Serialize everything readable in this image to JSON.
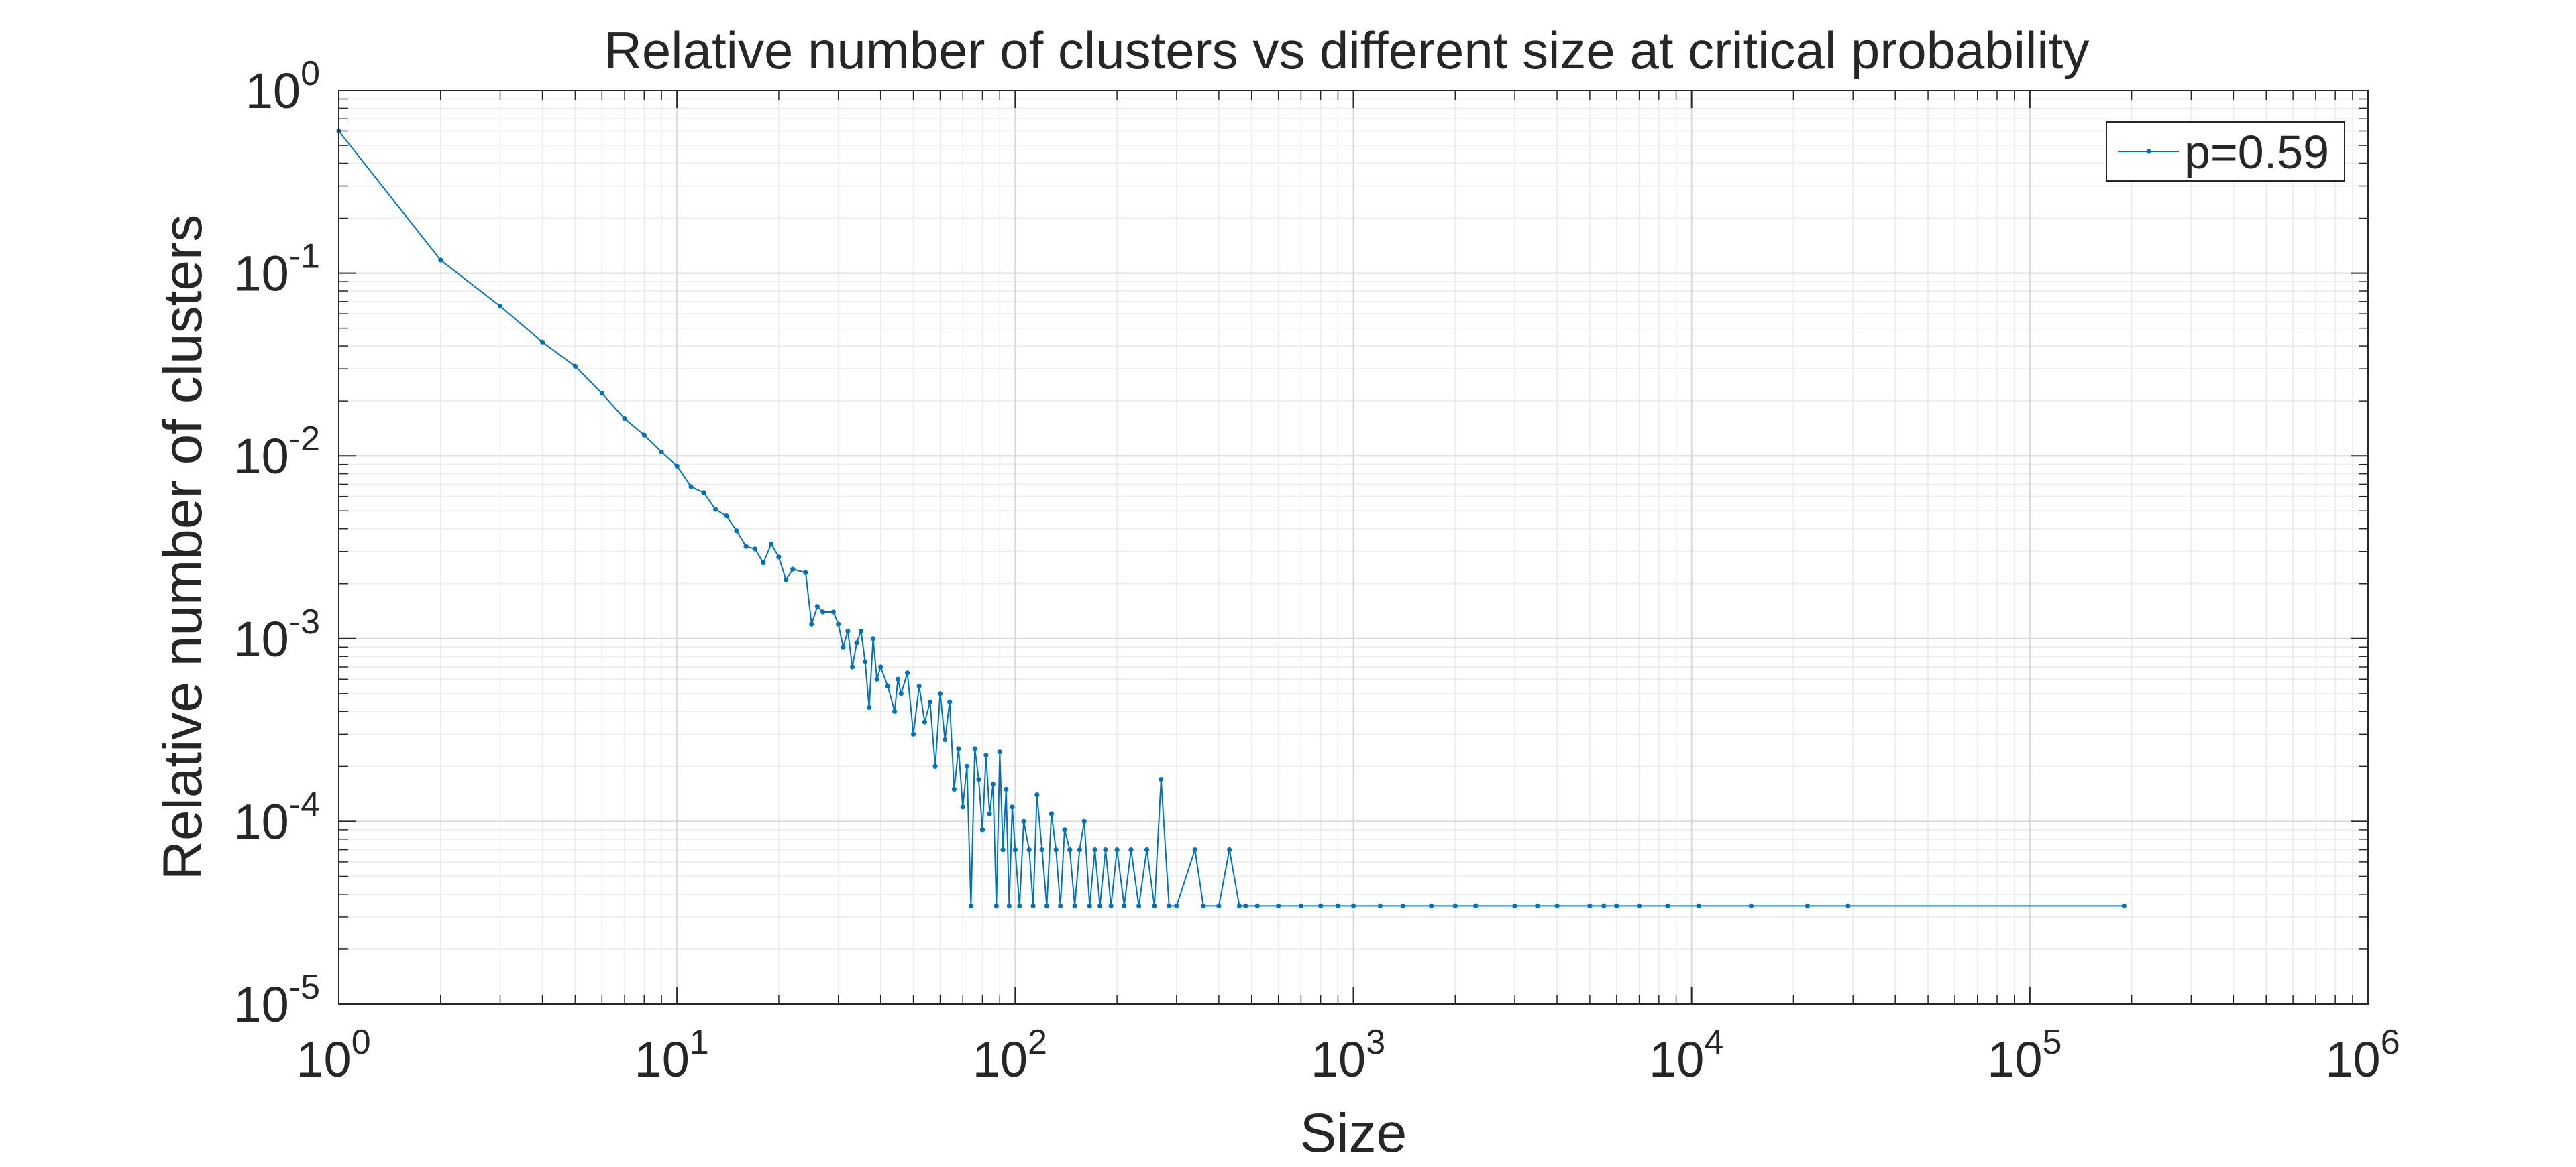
{
  "chart_data": {
    "type": "line",
    "title": "Relative number of clusters vs different size at critical probability",
    "xlabel": "Size",
    "ylabel": "Relative number of clusters",
    "x_scale": "log",
    "y_scale": "log",
    "xlim": [
      1,
      1000000
    ],
    "ylim": [
      1e-05,
      1
    ],
    "x_ticks": [
      {
        "value": 1,
        "base": "10",
        "exp": "0"
      },
      {
        "value": 10,
        "base": "10",
        "exp": "1"
      },
      {
        "value": 100,
        "base": "10",
        "exp": "2"
      },
      {
        "value": 1000,
        "base": "10",
        "exp": "3"
      },
      {
        "value": 10000,
        "base": "10",
        "exp": "4"
      },
      {
        "value": 100000,
        "base": "10",
        "exp": "5"
      },
      {
        "value": 1000000,
        "base": "10",
        "exp": "6"
      }
    ],
    "y_ticks": [
      {
        "value": 1,
        "base": "10",
        "exp": "0"
      },
      {
        "value": 0.1,
        "base": "10",
        "exp": "-1"
      },
      {
        "value": 0.01,
        "base": "10",
        "exp": "-2"
      },
      {
        "value": 0.001,
        "base": "10",
        "exp": "-3"
      },
      {
        "value": 0.0001,
        "base": "10",
        "exp": "-4"
      },
      {
        "value": 1e-05,
        "base": "10",
        "exp": "-5"
      }
    ],
    "grid": true,
    "minor_grid": true,
    "legend_position": "top-right",
    "series": [
      {
        "name": "p=0.59",
        "color": "#0072BD",
        "marker": "dot",
        "points": [
          [
            1,
            0.6
          ],
          [
            2,
            0.118
          ],
          [
            3,
            0.066
          ],
          [
            4,
            0.042
          ],
          [
            5,
            0.031
          ],
          [
            6,
            0.022
          ],
          [
            7,
            0.016
          ],
          [
            8,
            0.013
          ],
          [
            9,
            0.0105
          ],
          [
            10,
            0.0088
          ],
          [
            11,
            0.0068
          ],
          [
            12,
            0.0063
          ],
          [
            13,
            0.0051
          ],
          [
            14,
            0.0047
          ],
          [
            15,
            0.0039
          ],
          [
            16,
            0.0032
          ],
          [
            17,
            0.0031
          ],
          [
            18,
            0.0026
          ],
          [
            19,
            0.0033
          ],
          [
            20,
            0.0028
          ],
          [
            21,
            0.0021
          ],
          [
            22,
            0.0024
          ],
          [
            24,
            0.0023
          ],
          [
            25,
            0.0012
          ],
          [
            26,
            0.0015
          ],
          [
            27,
            0.0014
          ],
          [
            29,
            0.0014
          ],
          [
            30,
            0.0012
          ],
          [
            31,
            0.0009
          ],
          [
            32,
            0.0011
          ],
          [
            33,
            0.0007
          ],
          [
            34,
            0.00095
          ],
          [
            35,
            0.0011
          ],
          [
            36,
            0.00075
          ],
          [
            37,
            0.00042
          ],
          [
            38,
            0.001
          ],
          [
            39,
            0.0006
          ],
          [
            40,
            0.0007
          ],
          [
            42,
            0.00055
          ],
          [
            44,
            0.0004
          ],
          [
            45,
            0.0006
          ],
          [
            46,
            0.0005
          ],
          [
            48,
            0.00065
          ],
          [
            50,
            0.0003
          ],
          [
            52,
            0.00055
          ],
          [
            54,
            0.00035
          ],
          [
            56,
            0.00045
          ],
          [
            58,
            0.0002
          ],
          [
            60,
            0.0005
          ],
          [
            62,
            0.00028
          ],
          [
            64,
            0.00045
          ],
          [
            66,
            0.00015
          ],
          [
            68,
            0.00025
          ],
          [
            70,
            0.00012
          ],
          [
            72,
            0.0002
          ],
          [
            74,
            3.45e-05
          ],
          [
            76,
            0.00025
          ],
          [
            78,
            0.00017
          ],
          [
            80,
            9e-05
          ],
          [
            82,
            0.00023
          ],
          [
            84,
            0.00011
          ],
          [
            86,
            0.00016
          ],
          [
            88,
            3.45e-05
          ],
          [
            90,
            0.00024
          ],
          [
            92,
            7e-05
          ],
          [
            94,
            0.00015
          ],
          [
            96,
            3.45e-05
          ],
          [
            98,
            0.00012
          ],
          [
            100,
            7e-05
          ],
          [
            103,
            3.45e-05
          ],
          [
            106,
            0.0001
          ],
          [
            110,
            7e-05
          ],
          [
            113,
            3.45e-05
          ],
          [
            116,
            0.00014
          ],
          [
            120,
            7e-05
          ],
          [
            124,
            3.45e-05
          ],
          [
            128,
            0.00011
          ],
          [
            132,
            7e-05
          ],
          [
            136,
            3.45e-05
          ],
          [
            140,
            9e-05
          ],
          [
            145,
            7e-05
          ],
          [
            150,
            3.45e-05
          ],
          [
            155,
            7e-05
          ],
          [
            160,
            0.0001
          ],
          [
            166,
            3.45e-05
          ],
          [
            172,
            7e-05
          ],
          [
            178,
            3.45e-05
          ],
          [
            185,
            7e-05
          ],
          [
            192,
            3.45e-05
          ],
          [
            200,
            7e-05
          ],
          [
            210,
            3.45e-05
          ],
          [
            220,
            7e-05
          ],
          [
            232,
            3.45e-05
          ],
          [
            245,
            7e-05
          ],
          [
            258,
            3.45e-05
          ],
          [
            270,
            0.00017
          ],
          [
            285,
            3.45e-05
          ],
          [
            300,
            3.45e-05
          ],
          [
            340,
            7e-05
          ],
          [
            360,
            3.45e-05
          ],
          [
            400,
            3.45e-05
          ],
          [
            430,
            7e-05
          ],
          [
            460,
            3.45e-05
          ],
          [
            480,
            3.45e-05
          ],
          [
            520,
            3.45e-05
          ],
          [
            600,
            3.45e-05
          ],
          [
            700,
            3.45e-05
          ],
          [
            800,
            3.45e-05
          ],
          [
            900,
            3.45e-05
          ],
          [
            1000,
            3.45e-05
          ],
          [
            1200,
            3.45e-05
          ],
          [
            1400,
            3.45e-05
          ],
          [
            1700,
            3.45e-05
          ],
          [
            2000,
            3.45e-05
          ],
          [
            2300,
            3.45e-05
          ],
          [
            3000,
            3.45e-05
          ],
          [
            3500,
            3.45e-05
          ],
          [
            4000,
            3.45e-05
          ],
          [
            5000,
            3.45e-05
          ],
          [
            5500,
            3.45e-05
          ],
          [
            6000,
            3.45e-05
          ],
          [
            7000,
            3.45e-05
          ],
          [
            8500,
            3.45e-05
          ],
          [
            10500,
            3.45e-05
          ],
          [
            15000,
            3.45e-05
          ],
          [
            22000,
            3.45e-05
          ],
          [
            29000,
            3.45e-05
          ],
          [
            190000,
            3.45e-05
          ]
        ]
      }
    ]
  }
}
